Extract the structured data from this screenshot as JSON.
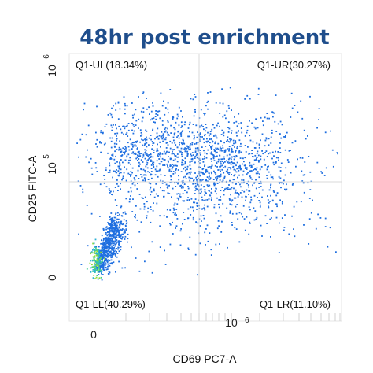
{
  "chart_data": {
    "type": "scatter",
    "title": "48hr post enrichment",
    "xlabel": "CD69 PC7-A",
    "ylabel": "CD25 FITC-A",
    "x_ticks": [
      {
        "value": "0",
        "exp": ""
      },
      {
        "value": "10",
        "exp": "6"
      }
    ],
    "y_ticks": [
      {
        "value": "0",
        "exp": ""
      },
      {
        "value": "10",
        "exp": "5"
      },
      {
        "value": "10",
        "exp": "6"
      }
    ],
    "quadrants": [
      {
        "name": "Q1-UL",
        "label": "Q1-UL(18.34%)",
        "percent": 18.34
      },
      {
        "name": "Q1-UR",
        "label": "Q1-UR(30.27%)",
        "percent": 30.27
      },
      {
        "name": "Q1-LL",
        "label": "Q1-LL(40.29%)",
        "percent": 40.29
      },
      {
        "name": "Q1-LR",
        "label": "Q1-LR(11.10%)",
        "percent": 11.1
      }
    ],
    "point_color": "#1f6fe0",
    "dense_colors": [
      "#2bb0d6",
      "#3fcf8e",
      "#8fdc3a"
    ],
    "grid": false
  }
}
